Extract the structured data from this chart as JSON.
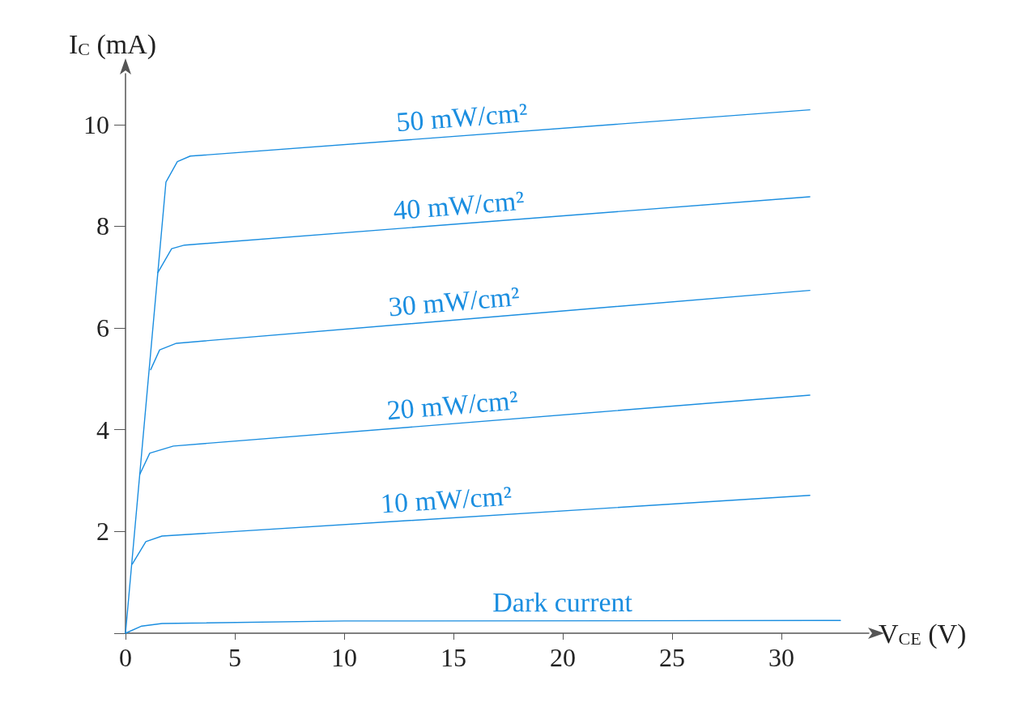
{
  "chart_data": {
    "type": "line",
    "xlabel": "V$_{CE}$ (V)",
    "ylabel": "I$_{C}$ (mA)",
    "xlim": [
      0,
      34
    ],
    "xticks": [
      0,
      5,
      10,
      15,
      20,
      25,
      30
    ],
    "ylim": [
      0,
      11
    ],
    "yticks": [
      {
        "value": 0,
        "label": null
      },
      2,
      4,
      6,
      8,
      10
    ],
    "grid": false,
    "legend": false,
    "marker": "none",
    "line_style": "solid",
    "series": [
      {
        "name": "50 mW/cm²",
        "color": "#1b8ee0",
        "x": [
          0,
          1.85,
          2.37,
          2.96,
          31.3
        ],
        "values": [
          0,
          8.87,
          9.27,
          9.38,
          10.29
        ]
      },
      {
        "name": "40 mW/cm²",
        "color": "#1b8ee0",
        "x": [
          1.48,
          2.11,
          2.7,
          31.3
        ],
        "values": [
          7.09,
          7.56,
          7.63,
          8.58
        ]
      },
      {
        "name": "30 mW/cm²",
        "color": "#1b8ee0",
        "x": [
          1.15,
          1.56,
          2.33,
          31.3
        ],
        "values": [
          5.18,
          5.57,
          5.7,
          6.74
        ]
      },
      {
        "name": "20 mW/cm²",
        "color": "#1b8ee0",
        "x": [
          0.65,
          1.11,
          2.19,
          31.3
        ],
        "values": [
          3.12,
          3.54,
          3.68,
          4.68
        ]
      },
      {
        "name": "10 mW/cm²",
        "color": "#1b8ee0",
        "x": [
          0.31,
          0.93,
          1.67,
          31.3
        ],
        "values": [
          1.36,
          1.8,
          1.91,
          2.71
        ]
      },
      {
        "name": "Dark current",
        "color": "#1b8ee0",
        "x": [
          0,
          0.74,
          1.67,
          10,
          32.7
        ],
        "values": [
          0,
          0.14,
          0.19,
          0.24,
          0.25
        ]
      }
    ]
  }
}
